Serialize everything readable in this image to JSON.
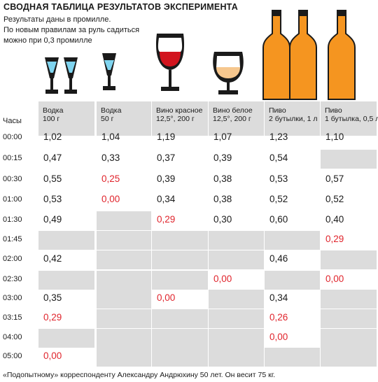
{
  "title": "СВОДНАЯ ТАБЛИЦА РЕЗУЛЬТАТОВ ЭКСПЕРИМЕНТА",
  "subtitle_lines": [
    "Результаты даны в промилле.",
    "По новым правилам  за руль садиться",
    "можно при 0,3 промилле"
  ],
  "time_header": "Часы",
  "columns": [
    {
      "name": "Водка",
      "detail": "100 г"
    },
    {
      "name": "Водка",
      "detail": "50 г"
    },
    {
      "name": "Вино красное",
      "detail": "12,5°, 200 г"
    },
    {
      "name": "Вино белое",
      "detail": "12,5°, 200 г"
    },
    {
      "name": "Пиво",
      "detail": "2 бутылки, 1 л"
    },
    {
      "name": "Пиво",
      "detail": "1 бутылка, 0,5 л"
    }
  ],
  "rows": [
    {
      "time": "00:00",
      "cells": [
        "1,02",
        "1,04",
        "1,19",
        "1,07",
        "1,23",
        "1,10"
      ]
    },
    {
      "time": "00:15",
      "cells": [
        "0,47",
        "0,33",
        "0,37",
        "0,39",
        "0,54",
        ""
      ]
    },
    {
      "time": "00:30",
      "cells": [
        "0,55",
        "0,25",
        "0,39",
        "0,38",
        "0,53",
        "0,57"
      ]
    },
    {
      "time": "01:00",
      "cells": [
        "0,53",
        "0,00",
        "0,34",
        "0,38",
        "0,52",
        "0,52"
      ]
    },
    {
      "time": "01:30",
      "cells": [
        "0,49",
        "",
        "0,29",
        "0,30",
        "0,60",
        "0,40"
      ]
    },
    {
      "time": "01:45",
      "cells": [
        "",
        "",
        "",
        "",
        "",
        "0,29"
      ]
    },
    {
      "time": "02:00",
      "cells": [
        "0,42",
        "",
        "",
        "",
        "0,46",
        ""
      ]
    },
    {
      "time": "02:30",
      "cells": [
        "",
        "",
        "",
        "0,00",
        "",
        "0,00"
      ]
    },
    {
      "time": "03:00",
      "cells": [
        "0,35",
        "",
        "0,00",
        "",
        "0,34",
        ""
      ]
    },
    {
      "time": "03:15",
      "cells": [
        "0,29",
        "",
        "",
        "",
        "0,26",
        ""
      ]
    },
    {
      "time": "04:00",
      "cells": [
        "",
        "",
        "",
        "",
        "0,00",
        ""
      ]
    },
    {
      "time": "05:00",
      "cells": [
        "0,00",
        "",
        "",
        "",
        "",
        ""
      ]
    }
  ],
  "highlight_color": "#e0242c",
  "highlight_threshold": 0.3,
  "shade_color": "#dcdcdc",
  "footnote": "«Подопытному» корреспонденту Александру Андрюхину 50 лет. Он весит 75 кг.",
  "icons": [
    "vodka-glass-icon",
    "vodka-glass-icon",
    "vodka-glass-icon",
    "wine-glass-icon",
    "cognac-glass-icon",
    "beer-bottle-icon",
    "beer-bottle-icon",
    "beer-bottle-icon"
  ]
}
